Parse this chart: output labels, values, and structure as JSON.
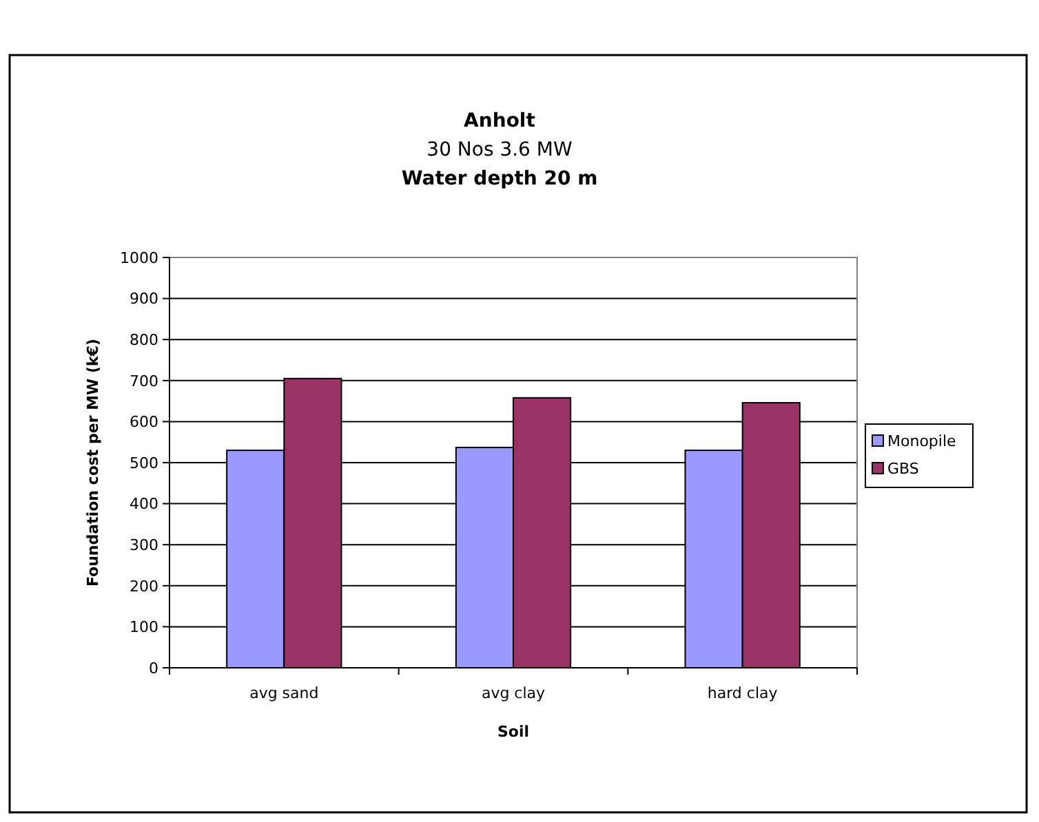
{
  "chart_data": {
    "type": "bar",
    "title": "Anholt",
    "subtitle": "30 Nos 3.6 MW\nWater depth 20 m",
    "xlabel": "Soil",
    "ylabel": "Foundation cost per MW (k€)",
    "categories": [
      "avg sand",
      "avg clay",
      "hard clay"
    ],
    "series": [
      {
        "name": "Monopile",
        "color": "#9999ff",
        "values": [
          530,
          537,
          530
        ]
      },
      {
        "name": "GBS",
        "color": "#993366",
        "values": [
          705,
          658,
          646
        ]
      }
    ],
    "ylim": [
      0,
      1000
    ],
    "yticks": [
      0,
      100,
      200,
      300,
      400,
      500,
      600,
      700,
      800,
      900,
      1000
    ],
    "grid": "y",
    "legend": "right"
  }
}
